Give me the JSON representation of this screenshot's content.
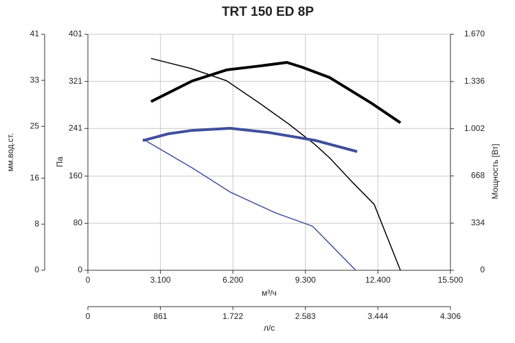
{
  "chart_data": {
    "type": "line",
    "title": "TRT 150 ED 8P",
    "xlabel": "м³/ч",
    "ylabel": "Па",
    "y2label": "Мощность [Вт]",
    "xlim": [
      0,
      15500
    ],
    "xticks": [
      0,
      {
        "value": 3100,
        "label": "3.100"
      },
      {
        "value": 6200,
        "label": "6.200"
      },
      {
        "value": 9300,
        "label": "9.300"
      },
      {
        "value": 12400,
        "label": "12.400"
      },
      {
        "value": 15500,
        "label": "15.500"
      }
    ],
    "ylim": [
      0,
      401
    ],
    "yticks": [
      0,
      80,
      160,
      241,
      321,
      401
    ],
    "y2lim": [
      0,
      1670
    ],
    "y2ticks": [
      0,
      334,
      668,
      {
        "value": 1002,
        "label": "1.002"
      },
      {
        "value": 1336,
        "label": "1.336"
      },
      {
        "value": 1670,
        "label": "1.670"
      }
    ],
    "left_axis": {
      "label": "мм.вод.ст.",
      "ylim": [
        0,
        41
      ],
      "yticks": [
        0,
        8,
        16,
        25,
        33,
        41
      ]
    },
    "bottom_axis": {
      "label": "л/с",
      "xlim": [
        0,
        4306
      ],
      "xticks": [
        0,
        861,
        {
          "value": 1722,
          "label": "1.722"
        },
        {
          "value": 2583,
          "label": "2.583"
        },
        {
          "value": 3444,
          "label": "3.444"
        },
        {
          "value": 4306,
          "label": "4.306"
        }
      ]
    },
    "grid": true,
    "series": [
      {
        "color": "#000000",
        "width": 1.5,
        "x": [
          2700,
          4400,
          5930,
          7300,
          8570,
          9700,
          10335,
          11300,
          12240,
          13360
        ],
        "values": [
          360,
          343,
          322,
          285,
          249,
          214,
          191,
          150,
          112,
          0
        ]
      },
      {
        "color": "#000000",
        "width": 4,
        "axis": "y2",
        "x": [
          2700,
          4460,
          5930,
          7400,
          8510,
          9160,
          10335,
          12100,
          13360
        ],
        "values": [
          1194,
          1340,
          1418,
          1447,
          1471,
          1437,
          1364,
          1185,
          1044
        ]
      },
      {
        "color": "#3f4f9c",
        "width": 1.5,
        "x": [
          2350,
          4460,
          6080,
          7990,
          9600,
          11450
        ],
        "values": [
          223,
          174,
          133,
          98,
          75,
          0
        ]
      },
      {
        "color": "#3f4f9c",
        "width": 4,
        "axis": "y2",
        "x": [
          2350,
          3435,
          4460,
          6080,
          7690,
          9750,
          11510
        ],
        "values": [
          918,
          966,
          990,
          1005,
          976,
          918,
          840
        ]
      }
    ]
  }
}
